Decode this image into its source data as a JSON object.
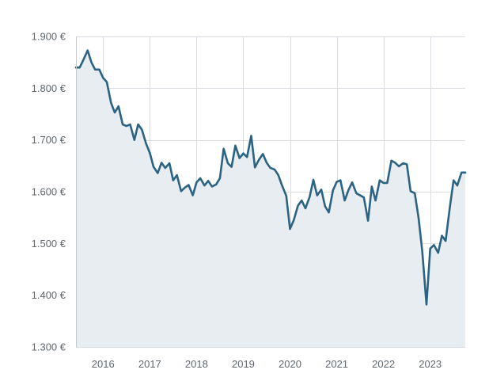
{
  "chart_data": {
    "type": "area",
    "title": "",
    "xlabel": "",
    "ylabel": "",
    "y_unit_suffix": " €",
    "ylim": [
      1300,
      1900
    ],
    "y_ticks": [
      1300,
      1400,
      1500,
      1600,
      1700,
      1800,
      1900
    ],
    "y_tick_labels": [
      "1.300 €",
      "1.400 €",
      "1.500 €",
      "1.600 €",
      "1.700 €",
      "1.800 €",
      "1.900 €"
    ],
    "x_ticks": [
      2016,
      2017,
      2018,
      2019,
      2020,
      2021,
      2022,
      2023
    ],
    "x_tick_labels": [
      "2016",
      "2017",
      "2018",
      "2019",
      "2020",
      "2021",
      "2022",
      "2023"
    ],
    "xlim": [
      2015.42,
      2023.75
    ],
    "grid": true,
    "legend": "none",
    "colors": {
      "line": "#2a6383",
      "area_fill": "#e8edf2",
      "grid": "#d9dde2",
      "text": "#5f6770"
    },
    "series": [
      {
        "x": [
          2015.42,
          2015.5,
          2015.58,
          2015.67,
          2015.75,
          2015.83,
          2015.92,
          2016.0,
          2016.08,
          2016.17,
          2016.25,
          2016.33,
          2016.42,
          2016.5,
          2016.58,
          2016.67,
          2016.75,
          2016.83,
          2016.92,
          2017.0,
          2017.08,
          2017.17,
          2017.25,
          2017.33,
          2017.42,
          2017.5,
          2017.58,
          2017.67,
          2017.75,
          2017.83,
          2017.92,
          2018.0,
          2018.08,
          2018.17,
          2018.25,
          2018.33,
          2018.42,
          2018.5,
          2018.58,
          2018.67,
          2018.75,
          2018.83,
          2018.92,
          2019.0,
          2019.08,
          2019.17,
          2019.25,
          2019.33,
          2019.42,
          2019.5,
          2019.58,
          2019.67,
          2019.75,
          2019.83,
          2019.92,
          2020.0,
          2020.08,
          2020.17,
          2020.25,
          2020.33,
          2020.42,
          2020.5,
          2020.58,
          2020.67,
          2020.75,
          2020.83,
          2020.92,
          2021.0,
          2021.08,
          2021.17,
          2021.25,
          2021.33,
          2021.42,
          2021.5,
          2021.58,
          2021.67,
          2021.75,
          2021.83,
          2021.92,
          2022.0,
          2022.08,
          2022.17,
          2022.25,
          2022.33,
          2022.42,
          2022.5,
          2022.58,
          2022.67,
          2022.75,
          2022.83,
          2022.92,
          2023.0,
          2023.08,
          2023.17,
          2023.25,
          2023.33,
          2023.42,
          2023.5,
          2023.58,
          2023.67,
          2023.75
        ],
        "values": [
          1840,
          1840,
          1855,
          1873,
          1850,
          1836,
          1836,
          1820,
          1812,
          1772,
          1753,
          1765,
          1730,
          1727,
          1730,
          1700,
          1730,
          1720,
          1693,
          1675,
          1648,
          1636,
          1656,
          1646,
          1655,
          1622,
          1632,
          1601,
          1608,
          1613,
          1593,
          1618,
          1626,
          1612,
          1621,
          1610,
          1614,
          1626,
          1683,
          1655,
          1648,
          1689,
          1665,
          1674,
          1667,
          1708,
          1647,
          1661,
          1673,
          1656,
          1646,
          1643,
          1632,
          1612,
          1592,
          1528,
          1545,
          1573,
          1583,
          1568,
          1590,
          1623,
          1593,
          1604,
          1572,
          1560,
          1603,
          1619,
          1622,
          1583,
          1603,
          1618,
          1597,
          1593,
          1589,
          1544,
          1610,
          1583,
          1622,
          1617,
          1617,
          1660,
          1656,
          1649,
          1655,
          1653,
          1601,
          1597,
          1550,
          1485,
          1382,
          1490,
          1497,
          1482,
          1515,
          1505,
          1570,
          1622,
          1612,
          1637,
          1637
        ]
      }
    ]
  }
}
